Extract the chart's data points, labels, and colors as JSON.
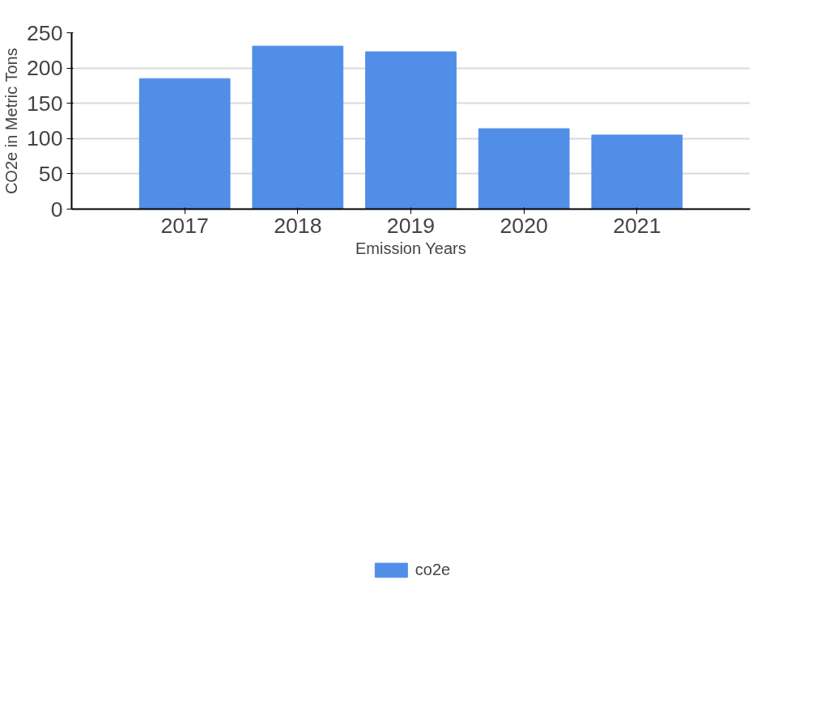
{
  "chart_data": {
    "type": "bar",
    "xlabel": "Emission Years",
    "ylabel": "CO2e in Metric Tons",
    "categories": [
      "2017",
      "2018",
      "2019",
      "2020",
      "2021"
    ],
    "series": [
      {
        "name": "co2e",
        "color": "#518ee8",
        "values": [
          185,
          231,
          223,
          114,
          105
        ]
      }
    ],
    "ylim": [
      0,
      250
    ],
    "yticks": [
      0,
      50,
      100,
      150,
      200,
      250
    ],
    "grid": "y",
    "legend": "bottom"
  }
}
